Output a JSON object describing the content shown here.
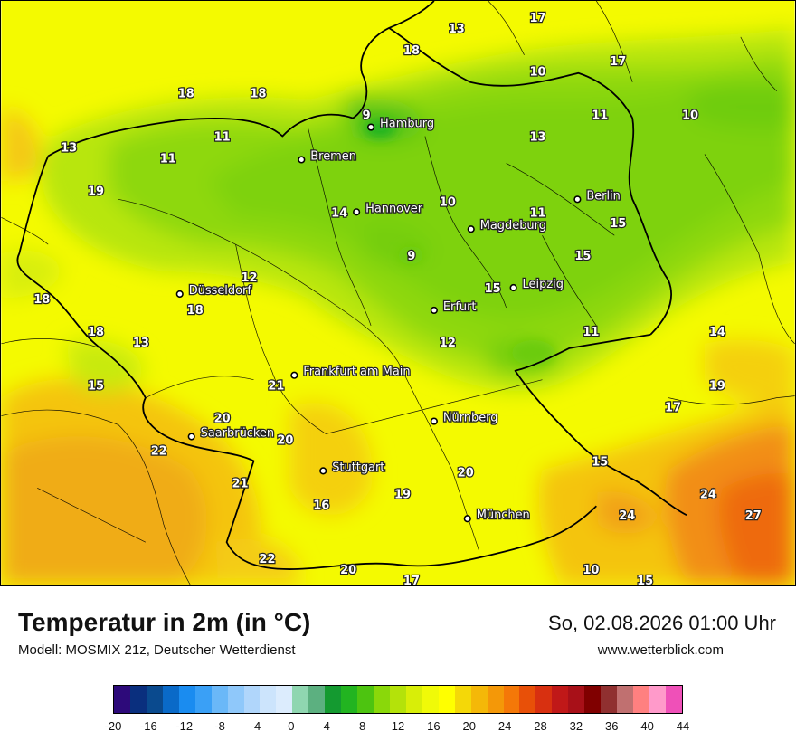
{
  "map": {
    "cities": [
      {
        "name": "Hamburg"
      },
      {
        "name": "Bremen"
      },
      {
        "name": "Hannover"
      },
      {
        "name": "Berlin"
      },
      {
        "name": "Magdeburg"
      },
      {
        "name": "Düsseldorf"
      },
      {
        "name": "Leipzig"
      },
      {
        "name": "Erfurt"
      },
      {
        "name": "Frankfurt am Main"
      },
      {
        "name": "Nürnberg"
      },
      {
        "name": "Saarbrücken"
      },
      {
        "name": "Stuttgart"
      },
      {
        "name": "München"
      }
    ],
    "values": [
      "13",
      "17",
      "18",
      "17",
      "10",
      "18",
      "18",
      "9",
      "11",
      "10",
      "13",
      "11",
      "11",
      "13",
      "19",
      "14",
      "10",
      "11",
      "15",
      "15",
      "9",
      "12",
      "18",
      "15",
      "18",
      "18",
      "13",
      "12",
      "11",
      "14",
      "15",
      "19",
      "21",
      "17",
      "20",
      "22",
      "20",
      "15",
      "21",
      "20",
      "19",
      "24",
      "16",
      "24",
      "27",
      "22",
      "20",
      "17",
      "10",
      "15"
    ]
  },
  "footer": {
    "title": "Temperatur in 2m (in °C)",
    "subtitle": "Modell: MOSMIX 21z, Deutscher Wetterdienst",
    "datetime": "So, 02.08.2026 01:00 Uhr",
    "website": "www.wetterblick.com"
  },
  "legend": {
    "colors": [
      "#2d0a7a",
      "#0a2f7e",
      "#0a4a8e",
      "#0a6ac8",
      "#1a8cf0",
      "#3aa0f6",
      "#6ab8f8",
      "#8fc8fa",
      "#b0d6fb",
      "#cce4fc",
      "#dcecfd",
      "#8fd6b0",
      "#5cb080",
      "#149a30",
      "#22b420",
      "#4dc410",
      "#8ad80a",
      "#b4e20a",
      "#d8ee08",
      "#f0fa08",
      "#ffff00",
      "#f4d808",
      "#f4b808",
      "#f49808",
      "#f47808",
      "#e85008",
      "#d83010",
      "#c01818",
      "#a81018",
      "#800000",
      "#903030",
      "#c07070",
      "#ff8080",
      "#ff9aca",
      "#ef50b8"
    ],
    "ticks": [
      "-20",
      "-16",
      "-12",
      "-8",
      "-4",
      "0",
      "4",
      "8",
      "12",
      "16",
      "20",
      "24",
      "28",
      "32",
      "36",
      "40",
      "44"
    ]
  }
}
